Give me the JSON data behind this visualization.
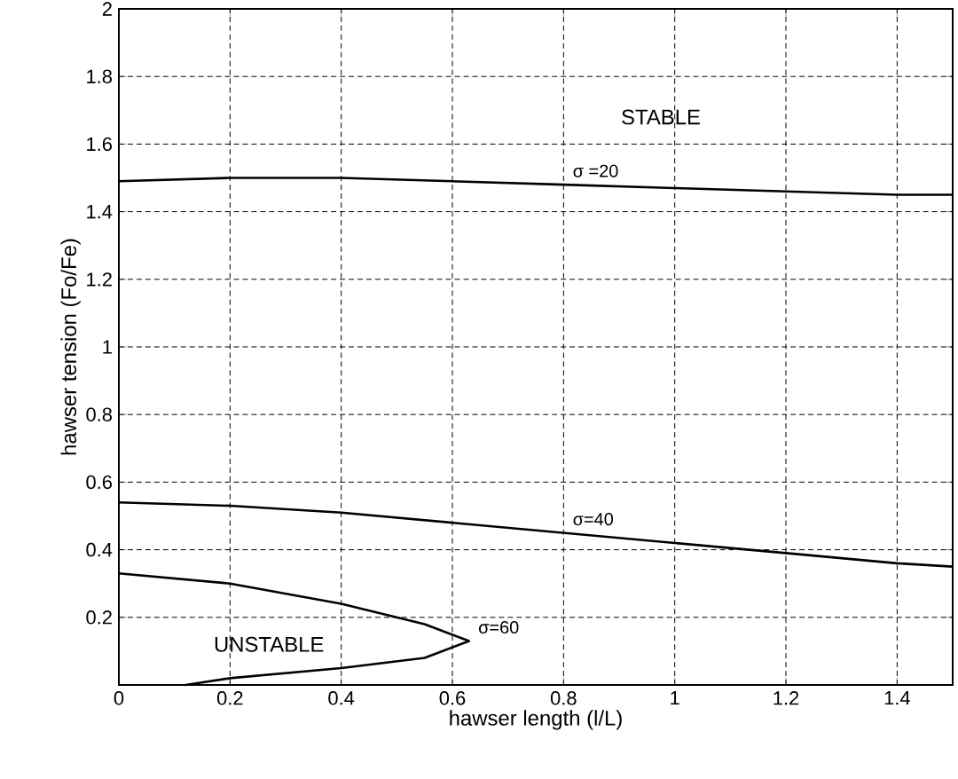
{
  "chart_data": {
    "type": "line",
    "xlabel": "hawser length (l/L)",
    "ylabel": "hawser tension (Fo/Fe)",
    "xlim": [
      0,
      1.5
    ],
    "ylim": [
      0,
      2
    ],
    "xticks": [
      0,
      0.2,
      0.4,
      0.6,
      0.8,
      1,
      1.2,
      1.4
    ],
    "yticks": [
      {
        "value": 0,
        "label": null
      },
      0.2,
      0.4,
      0.6,
      0.8,
      1,
      1.2,
      1.4,
      1.6,
      1.8,
      2
    ],
    "grid": true,
    "line_style": "solid",
    "series": [
      {
        "name": "σ =20",
        "color": "#000000",
        "x": [
          0,
          0.2,
          0.4,
          0.6,
          0.8,
          1.0,
          1.2,
          1.4,
          1.5
        ],
        "values": [
          1.49,
          1.5,
          1.5,
          1.49,
          1.48,
          1.47,
          1.46,
          1.45,
          1.45
        ]
      },
      {
        "name": "σ=40",
        "color": "#000000",
        "x": [
          0,
          0.2,
          0.4,
          0.6,
          0.8,
          1.0,
          1.2,
          1.4,
          1.5
        ],
        "values": [
          0.54,
          0.53,
          0.51,
          0.48,
          0.45,
          0.42,
          0.39,
          0.36,
          0.35
        ]
      },
      {
        "name": "σ=60",
        "color": "#000000",
        "x": [
          0,
          0.2,
          0.4,
          0.55,
          0.63,
          0.55,
          0.4,
          0.2,
          0.12
        ],
        "values": [
          0.33,
          0.3,
          0.24,
          0.18,
          0.13,
          0.08,
          0.05,
          0.02,
          0.0
        ]
      }
    ],
    "annotations": [
      "STABLE",
      "UNSTABLE"
    ]
  }
}
